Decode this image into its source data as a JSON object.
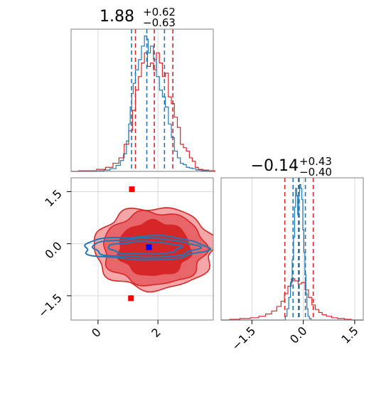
{
  "colors": {
    "red": "#d62728",
    "blue": "#1f77b4",
    "light_red": "#f4a6a8",
    "mid_red": "#e86569",
    "marker_blue": "#0000ff",
    "marker_red": "#ff0000"
  },
  "chart_data": [
    {
      "type": "step-histogram",
      "panel": "top-left marginal (parameter 1)",
      "title": {
        "value": "1.88",
        "upper": "+0.62",
        "lower": "−0.63"
      },
      "xlim": [
        -0.9,
        3.85
      ],
      "series": [
        {
          "color": "blue",
          "quantiles": [
            1.12,
            1.63,
            2.22
          ],
          "x": [
            0.1,
            0.3,
            0.5,
            0.7,
            0.8,
            0.9,
            1.0,
            1.05,
            1.1,
            1.15,
            1.2,
            1.3,
            1.4,
            1.5,
            1.6,
            1.65,
            1.7,
            1.8,
            1.9,
            2.0,
            2.1,
            2.2,
            2.3,
            2.4,
            2.5,
            2.6,
            2.7,
            2.8,
            2.9,
            3.0,
            3.1,
            3.2,
            3.35,
            3.55
          ],
          "y": [
            1,
            2,
            4,
            9,
            16,
            26,
            45,
            70,
            95,
            115,
            130,
            150,
            165,
            185,
            200,
            195,
            175,
            185,
            165,
            140,
            120,
            110,
            95,
            70,
            50,
            30,
            20,
            12,
            10,
            6,
            5,
            4,
            2,
            1
          ]
        },
        {
          "color": "red",
          "quantiles": [
            1.25,
            1.88,
            2.5
          ],
          "x": [
            -0.5,
            -0.2,
            0.1,
            0.4,
            0.6,
            0.8,
            0.95,
            1.1,
            1.2,
            1.3,
            1.4,
            1.5,
            1.6,
            1.7,
            1.8,
            1.9,
            2.0,
            2.1,
            2.2,
            2.3,
            2.4,
            2.5,
            2.6,
            2.7,
            2.8,
            2.9,
            3.0,
            3.1,
            3.2,
            3.3,
            3.4,
            3.6,
            3.8
          ],
          "y": [
            1,
            1,
            3,
            6,
            12,
            20,
            40,
            60,
            90,
            120,
            140,
            160,
            175,
            155,
            160,
            150,
            175,
            160,
            140,
            145,
            110,
            100,
            80,
            65,
            40,
            35,
            30,
            20,
            15,
            6,
            3,
            2,
            1
          ]
        }
      ]
    },
    {
      "type": "step-histogram",
      "panel": "bottom-right marginal (parameter 2)",
      "title": {
        "value": "−0.14",
        "upper": "+0.43",
        "lower": "−0.40"
      },
      "xlim": [
        -2.4,
        1.75
      ],
      "xticks": [
        "−1.5",
        "0.0",
        "1.5"
      ],
      "series": [
        {
          "color": "blue",
          "quantiles": [
            -0.3,
            -0.12,
            0.06
          ],
          "x": [
            -0.5,
            -0.45,
            -0.4,
            -0.35,
            -0.3,
            -0.27,
            -0.24,
            -0.21,
            -0.18,
            -0.15,
            -0.12,
            -0.09,
            -0.06,
            -0.03,
            0.0,
            0.03,
            0.06,
            0.09,
            0.12,
            0.15,
            0.2
          ],
          "y": [
            5,
            15,
            30,
            50,
            80,
            110,
            150,
            175,
            165,
            140,
            170,
            180,
            175,
            160,
            120,
            90,
            60,
            35,
            15,
            5,
            2
          ]
        },
        {
          "color": "red",
          "quantiles": [
            -0.54,
            -0.14,
            0.29
          ],
          "x": [
            -2.0,
            -1.7,
            -1.4,
            -1.2,
            -1.0,
            -0.85,
            -0.7,
            -0.6,
            -0.5,
            -0.4,
            -0.3,
            -0.2,
            -0.1,
            0.0,
            0.1,
            0.2,
            0.3,
            0.4,
            0.5,
            0.6,
            0.75,
            0.9,
            1.1,
            1.3
          ],
          "y": [
            1,
            2,
            3,
            5,
            8,
            12,
            18,
            25,
            35,
            45,
            55,
            52,
            48,
            50,
            40,
            30,
            20,
            14,
            10,
            7,
            5,
            3,
            2,
            1
          ]
        }
      ]
    },
    {
      "type": "contour",
      "panel": "bottom-left 2D joint",
      "xlim": [
        -0.9,
        3.85
      ],
      "ylim": [
        -2.2,
        1.9
      ],
      "xticks": [
        "0",
        "2"
      ],
      "yticks": [
        "1.5",
        "0.0",
        "−1.5"
      ],
      "markers": [
        {
          "color": "marker_red",
          "x": 1.13,
          "y": 1.57
        },
        {
          "color": "marker_red",
          "x": 1.1,
          "y": -1.57
        },
        {
          "color": "marker_blue",
          "x": 1.7,
          "y": -0.1
        }
      ],
      "series": [
        {
          "color": "red",
          "filled": true,
          "center": [
            1.88,
            -0.14
          ],
          "level_widths": [
            [
              1.2,
              0.78
            ],
            [
              1.7,
              1.05
            ],
            [
              2.0,
              1.18
            ]
          ]
        },
        {
          "color": "blue",
          "filled": false,
          "center": [
            1.55,
            -0.12
          ],
          "level_widths": [
            [
              1.2,
              0.18
            ],
            [
              1.75,
              0.27
            ],
            [
              2.05,
              0.34
            ]
          ]
        }
      ]
    }
  ]
}
